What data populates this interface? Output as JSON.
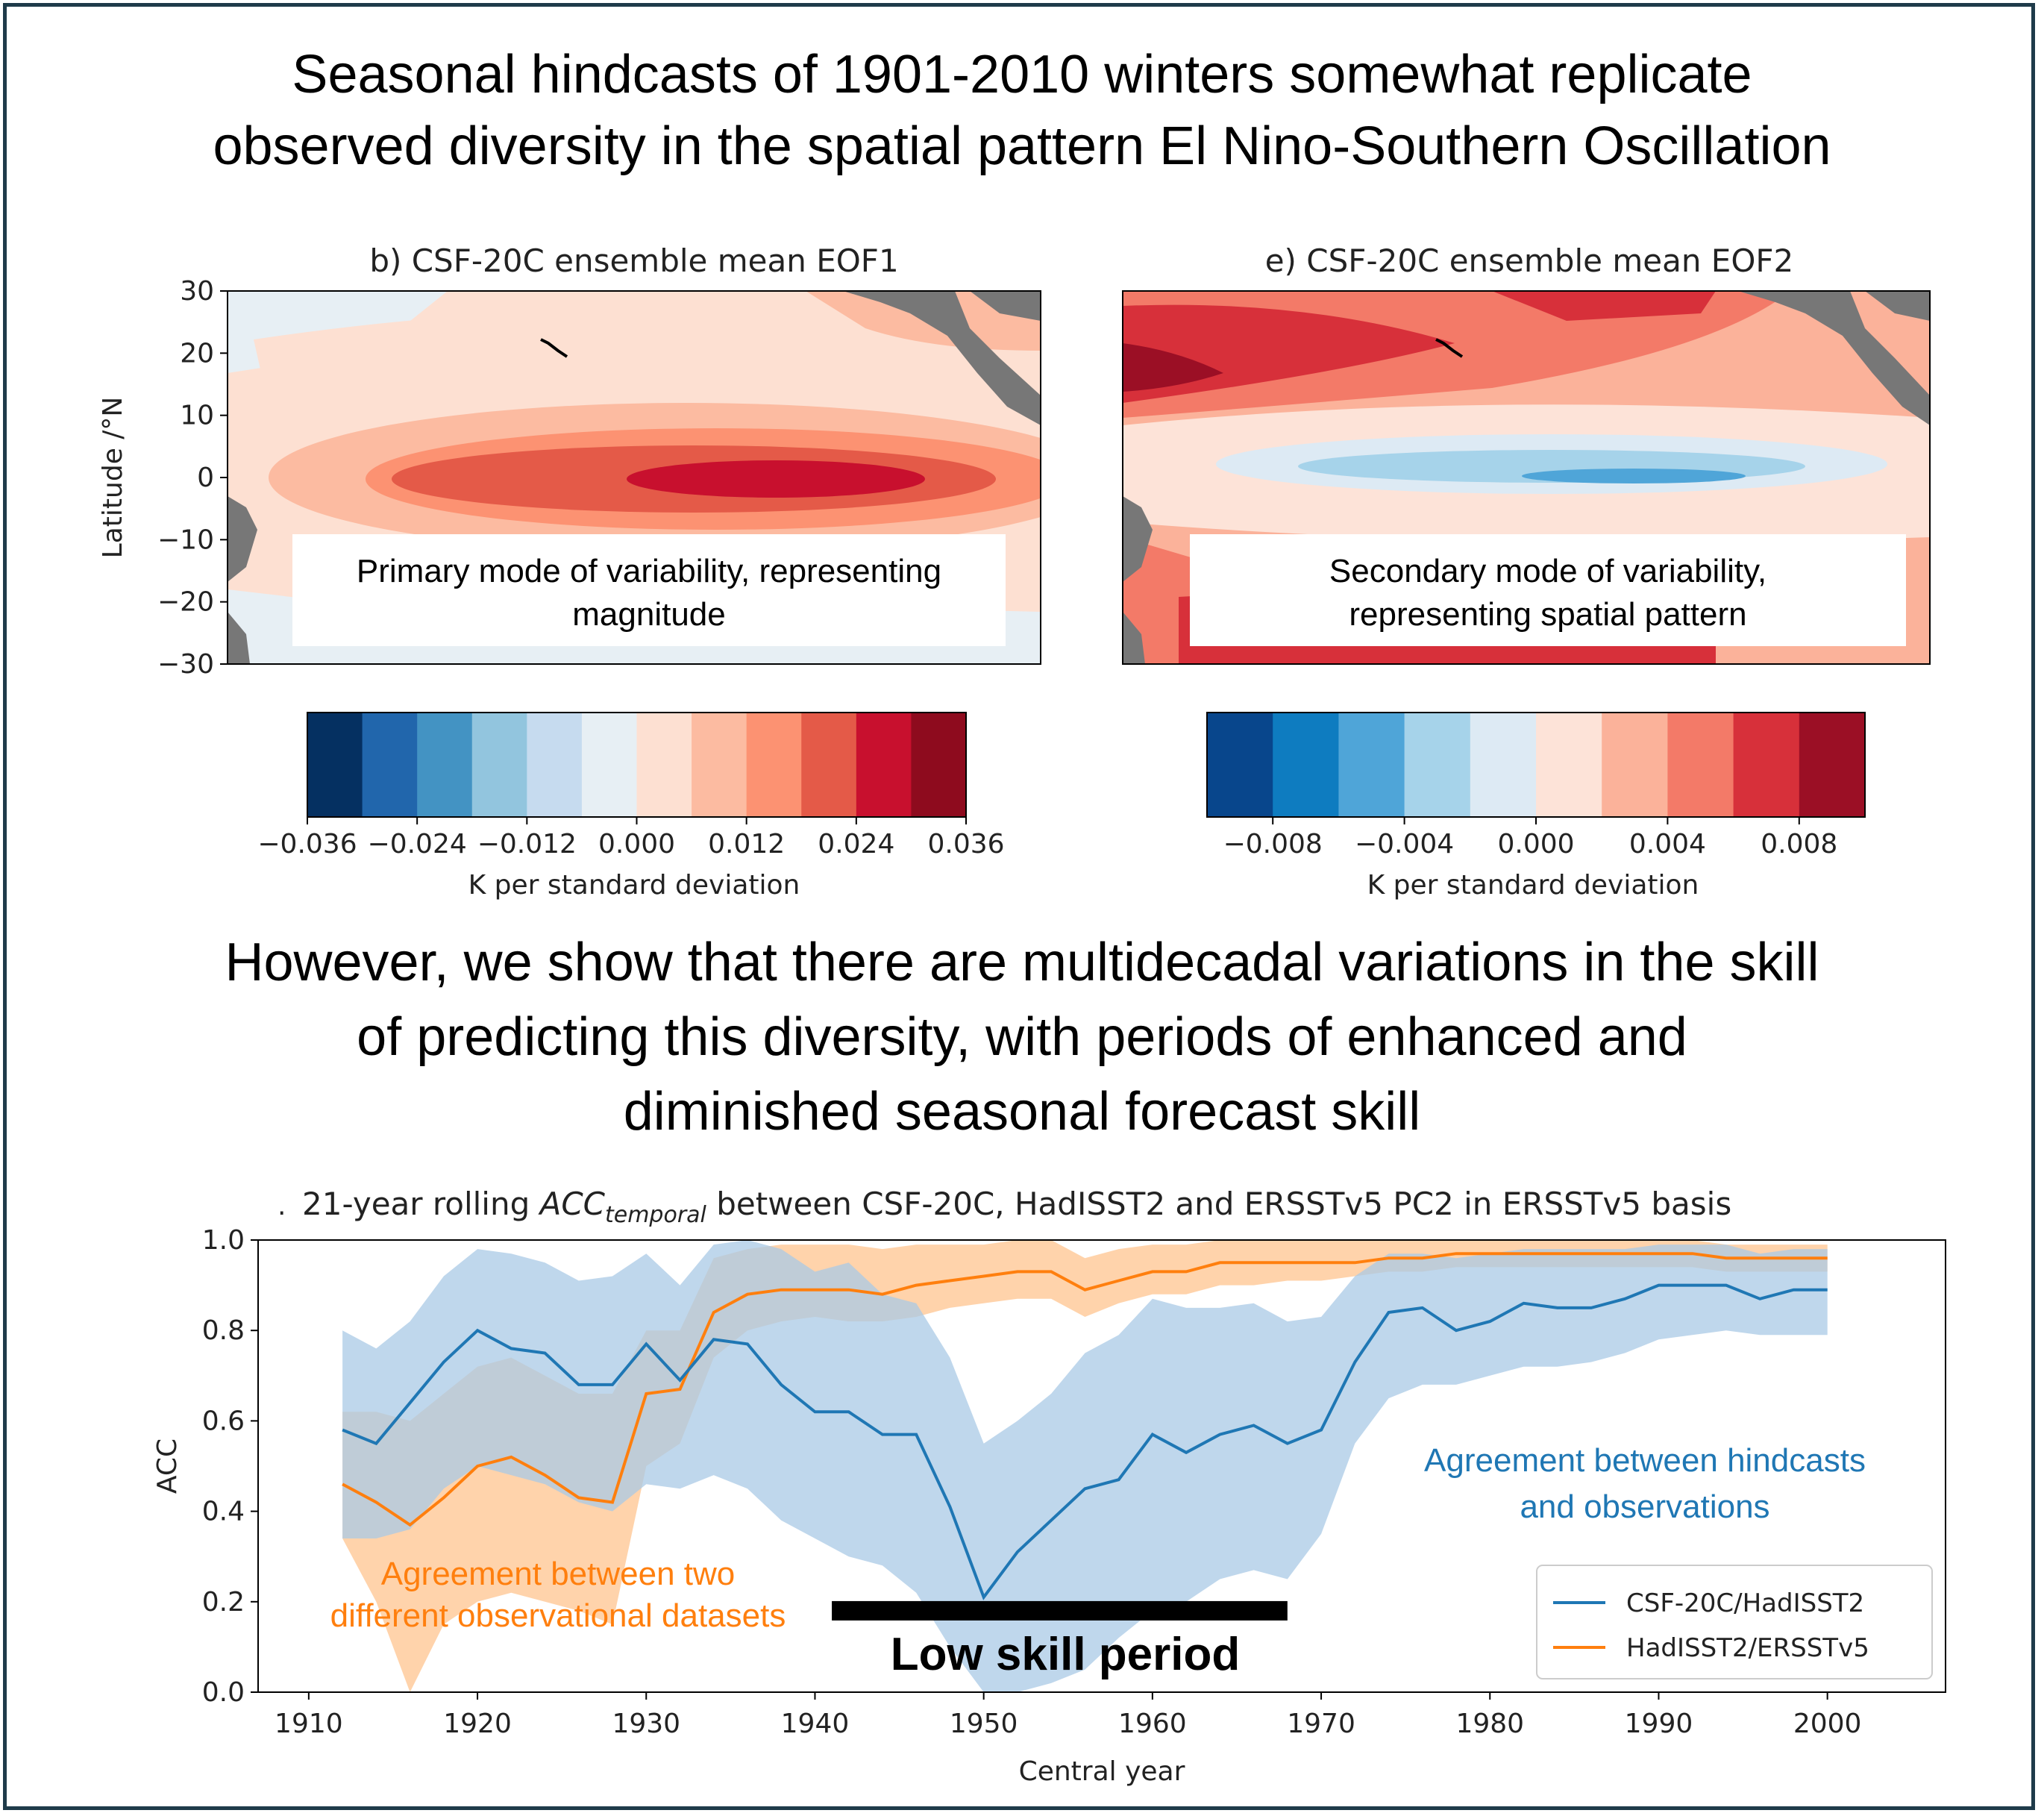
{
  "headline_top": [
    "Seasonal hindcasts of 1901-2010 winters somewhat replicate",
    "observed diversity in the spatial pattern El Nino-Southern Oscillation"
  ],
  "headline_mid": [
    "However, we show that there are multidecadal variations in the skill",
    "of predicting this diversity, with periods of enhanced and",
    "diminished seasonal forecast skill"
  ],
  "colors": {
    "blue_series": "#1f77b4",
    "orange_series": "#ff7f0e",
    "blue_band": "#a9c9e6",
    "orange_band": "#ffc896",
    "land": "#777777",
    "border": "#1f3b4a"
  },
  "chart_data": [
    {
      "type": "heatmap",
      "title": "b) CSF-20C ensemble mean EOF1",
      "ylabel": "Latitude /°N",
      "yticks": [
        "30",
        "20",
        "10",
        "0",
        "−10",
        "−20",
        "−30"
      ],
      "ylim": [
        -30,
        30
      ],
      "annotation": [
        "Primary mode of variability, representing",
        "magnitude"
      ],
      "colorbar": {
        "ticks": [
          "−0.036",
          "−0.024",
          "−0.012",
          "0.000",
          "0.012",
          "0.024",
          "0.036"
        ],
        "range": [
          -0.036,
          0.036
        ],
        "label": "K per standard deviation",
        "colors": [
          "#053061",
          "#2166ac",
          "#4393c3",
          "#92c5de",
          "#c6dbef",
          "#e7eff4",
          "#fde0d2",
          "#fcbba1",
          "#fc9272",
          "#e45a48",
          "#c8102e",
          "#8e0b1e"
        ]
      }
    },
    {
      "type": "heatmap",
      "title": "e) CSF-20C ensemble mean EOF2",
      "ylim": [
        -30,
        30
      ],
      "annotation": [
        "Secondary mode of variability,",
        "representing spatial pattern"
      ],
      "colorbar": {
        "ticks": [
          "−0.008",
          "−0.004",
          "0.000",
          "0.004",
          "0.008"
        ],
        "range": [
          -0.01,
          0.01
        ],
        "label": "K per standard deviation",
        "colors": [
          "#08468c",
          "#0e7cc0",
          "#4fa5d8",
          "#a6d3ea",
          "#ddeaf4",
          "#fde3d8",
          "#fbb29a",
          "#f37a68",
          "#d7303a",
          "#9b0f25"
        ]
      }
    },
    {
      "type": "line",
      "title_prefix": "21-year rolling ",
      "title_acc": "ACC",
      "title_sub": "temporal",
      "title_suffix": " between CSF-20C, HadISST2 and ERSSTv5 PC2 in ERSSTv5 basis",
      "xlabel": "Central year",
      "ylabel": "ACC",
      "xlim": [
        1907,
        2007
      ],
      "ylim": [
        0,
        1
      ],
      "xticks": [
        1910,
        1920,
        1930,
        1940,
        1950,
        1960,
        1970,
        1980,
        1990,
        2000
      ],
      "yticks": [
        "0.0",
        "0.2",
        "0.4",
        "0.6",
        "0.8",
        "1.0"
      ],
      "x": [
        1912,
        1914,
        1916,
        1918,
        1920,
        1922,
        1924,
        1926,
        1928,
        1930,
        1932,
        1934,
        1936,
        1938,
        1940,
        1942,
        1944,
        1946,
        1948,
        1950,
        1952,
        1954,
        1956,
        1958,
        1960,
        1962,
        1964,
        1966,
        1968,
        1970,
        1972,
        1974,
        1976,
        1978,
        1980,
        1982,
        1984,
        1986,
        1988,
        1990,
        1992,
        1994,
        1996,
        1998,
        2000
      ],
      "series": [
        {
          "name": "CSF-20C/HadISST2",
          "values": [
            0.58,
            0.55,
            0.64,
            0.73,
            0.8,
            0.76,
            0.75,
            0.68,
            0.68,
            0.77,
            0.69,
            0.78,
            0.77,
            0.68,
            0.62,
            0.62,
            0.57,
            0.57,
            0.41,
            0.21,
            0.31,
            0.38,
            0.45,
            0.47,
            0.57,
            0.53,
            0.57,
            0.59,
            0.55,
            0.58,
            0.73,
            0.84,
            0.85,
            0.8,
            0.82,
            0.86,
            0.85,
            0.85,
            0.87,
            0.9,
            0.9,
            0.9,
            0.87,
            0.89,
            0.89
          ],
          "lower": [
            0.34,
            0.34,
            0.36,
            0.45,
            0.5,
            0.48,
            0.46,
            0.42,
            0.4,
            0.46,
            0.45,
            0.48,
            0.45,
            0.38,
            0.34,
            0.3,
            0.28,
            0.22,
            0.1,
            0.0,
            0.0,
            0.02,
            0.05,
            0.12,
            0.18,
            0.2,
            0.25,
            0.27,
            0.25,
            0.35,
            0.55,
            0.65,
            0.68,
            0.68,
            0.7,
            0.72,
            0.72,
            0.73,
            0.75,
            0.78,
            0.79,
            0.8,
            0.79,
            0.79,
            0.79
          ],
          "upper": [
            0.8,
            0.76,
            0.82,
            0.92,
            0.98,
            0.97,
            0.95,
            0.91,
            0.92,
            0.97,
            0.9,
            0.99,
            1.0,
            0.98,
            0.93,
            0.95,
            0.88,
            0.86,
            0.74,
            0.55,
            0.6,
            0.66,
            0.75,
            0.79,
            0.87,
            0.85,
            0.85,
            0.86,
            0.82,
            0.83,
            0.92,
            0.97,
            0.97,
            0.96,
            0.97,
            0.98,
            0.98,
            0.98,
            0.98,
            0.99,
            0.99,
            0.99,
            0.97,
            0.98,
            0.98
          ]
        },
        {
          "name": "HadISST2/ERSSTv5",
          "values": [
            0.46,
            0.42,
            0.37,
            0.43,
            0.5,
            0.52,
            0.48,
            0.43,
            0.42,
            0.66,
            0.67,
            0.84,
            0.88,
            0.89,
            0.89,
            0.89,
            0.88,
            0.9,
            0.91,
            0.92,
            0.93,
            0.93,
            0.89,
            0.91,
            0.93,
            0.93,
            0.95,
            0.95,
            0.95,
            0.95,
            0.95,
            0.96,
            0.96,
            0.97,
            0.97,
            0.97,
            0.97,
            0.97,
            0.97,
            0.97,
            0.97,
            0.96,
            0.96,
            0.96,
            0.96
          ],
          "lower": [
            0.34,
            0.2,
            0.0,
            0.15,
            0.2,
            0.22,
            0.2,
            0.18,
            0.15,
            0.5,
            0.55,
            0.74,
            0.8,
            0.82,
            0.83,
            0.82,
            0.82,
            0.83,
            0.85,
            0.86,
            0.87,
            0.87,
            0.83,
            0.86,
            0.88,
            0.88,
            0.9,
            0.9,
            0.91,
            0.91,
            0.92,
            0.93,
            0.93,
            0.94,
            0.94,
            0.94,
            0.94,
            0.94,
            0.94,
            0.94,
            0.94,
            0.93,
            0.93,
            0.93,
            0.93
          ],
          "upper": [
            0.62,
            0.62,
            0.6,
            0.66,
            0.72,
            0.74,
            0.7,
            0.66,
            0.66,
            0.8,
            0.8,
            0.96,
            0.98,
            0.99,
            0.99,
            0.99,
            0.98,
            0.99,
            0.99,
            0.99,
            1.0,
            1.0,
            0.96,
            0.98,
            0.99,
            0.99,
            1.0,
            1.0,
            1.0,
            1.0,
            1.0,
            1.0,
            1.0,
            1.0,
            1.0,
            1.0,
            1.0,
            1.0,
            1.0,
            1.0,
            1.0,
            0.99,
            0.99,
            0.99,
            0.99
          ]
        }
      ],
      "legend": "lower-right",
      "annotations": {
        "orange_note": [
          "Agreement between two",
          "different observational datasets"
        ],
        "blue_note": [
          "Agreement between hindcasts",
          "and observations"
        ],
        "low_skill": "Low skill period",
        "low_skill_range": [
          1941,
          1968
        ]
      }
    }
  ]
}
